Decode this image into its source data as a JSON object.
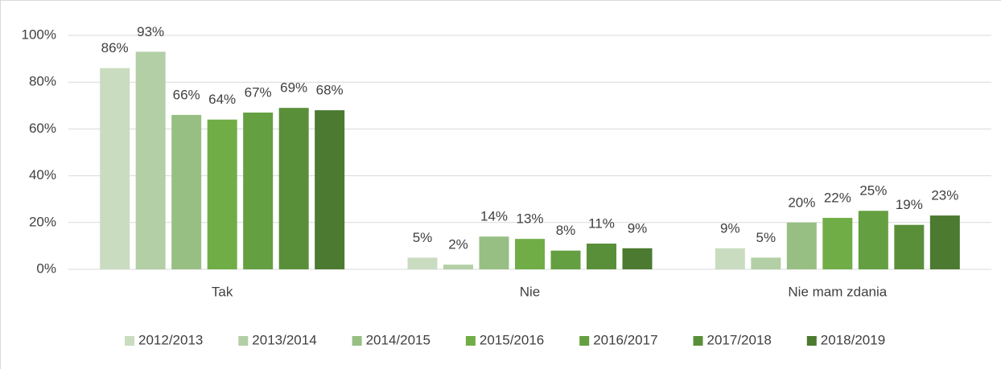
{
  "chart_data": {
    "type": "bar",
    "categories": [
      "Tak",
      "Nie",
      "Nie mam zdania"
    ],
    "series": [
      {
        "name": "2012/2013",
        "color": "#c9dcc0",
        "values": [
          86,
          5,
          9
        ],
        "value_labels": [
          "86%",
          "5%",
          "9%"
        ]
      },
      {
        "name": "2013/2014",
        "color": "#b3cfa5",
        "values": [
          93,
          2,
          5
        ],
        "value_labels": [
          "93%",
          "2%",
          "5%"
        ]
      },
      {
        "name": "2014/2015",
        "color": "#97bf84",
        "values": [
          66,
          14,
          20
        ],
        "value_labels": [
          "66%",
          "14%",
          "20%"
        ]
      },
      {
        "name": "2015/2016",
        "color": "#70ad47",
        "values": [
          64,
          13,
          22
        ],
        "value_labels": [
          "64%",
          "13%",
          "22%"
        ]
      },
      {
        "name": "2016/2017",
        "color": "#649f41",
        "values": [
          67,
          8,
          25
        ],
        "value_labels": [
          "67%",
          "8%",
          "25%"
        ]
      },
      {
        "name": "2017/2018",
        "color": "#5a8f3a",
        "values": [
          69,
          11,
          19
        ],
        "value_labels": [
          "69%",
          "11%",
          "19%"
        ]
      },
      {
        "name": "2018/2019",
        "color": "#4b7a30",
        "values": [
          68,
          9,
          23
        ],
        "value_labels": [
          "68%",
          "9%",
          "23%"
        ]
      }
    ],
    "ylim": [
      0,
      100
    ],
    "yticks": [
      {
        "value": 0,
        "label": "0%"
      },
      {
        "value": 20,
        "label": "20%"
      },
      {
        "value": 40,
        "label": "40%"
      },
      {
        "value": 60,
        "label": "60%"
      },
      {
        "value": 80,
        "label": "80%"
      },
      {
        "value": 100,
        "label": "100%"
      }
    ],
    "grid": true,
    "legend": "bottom"
  }
}
